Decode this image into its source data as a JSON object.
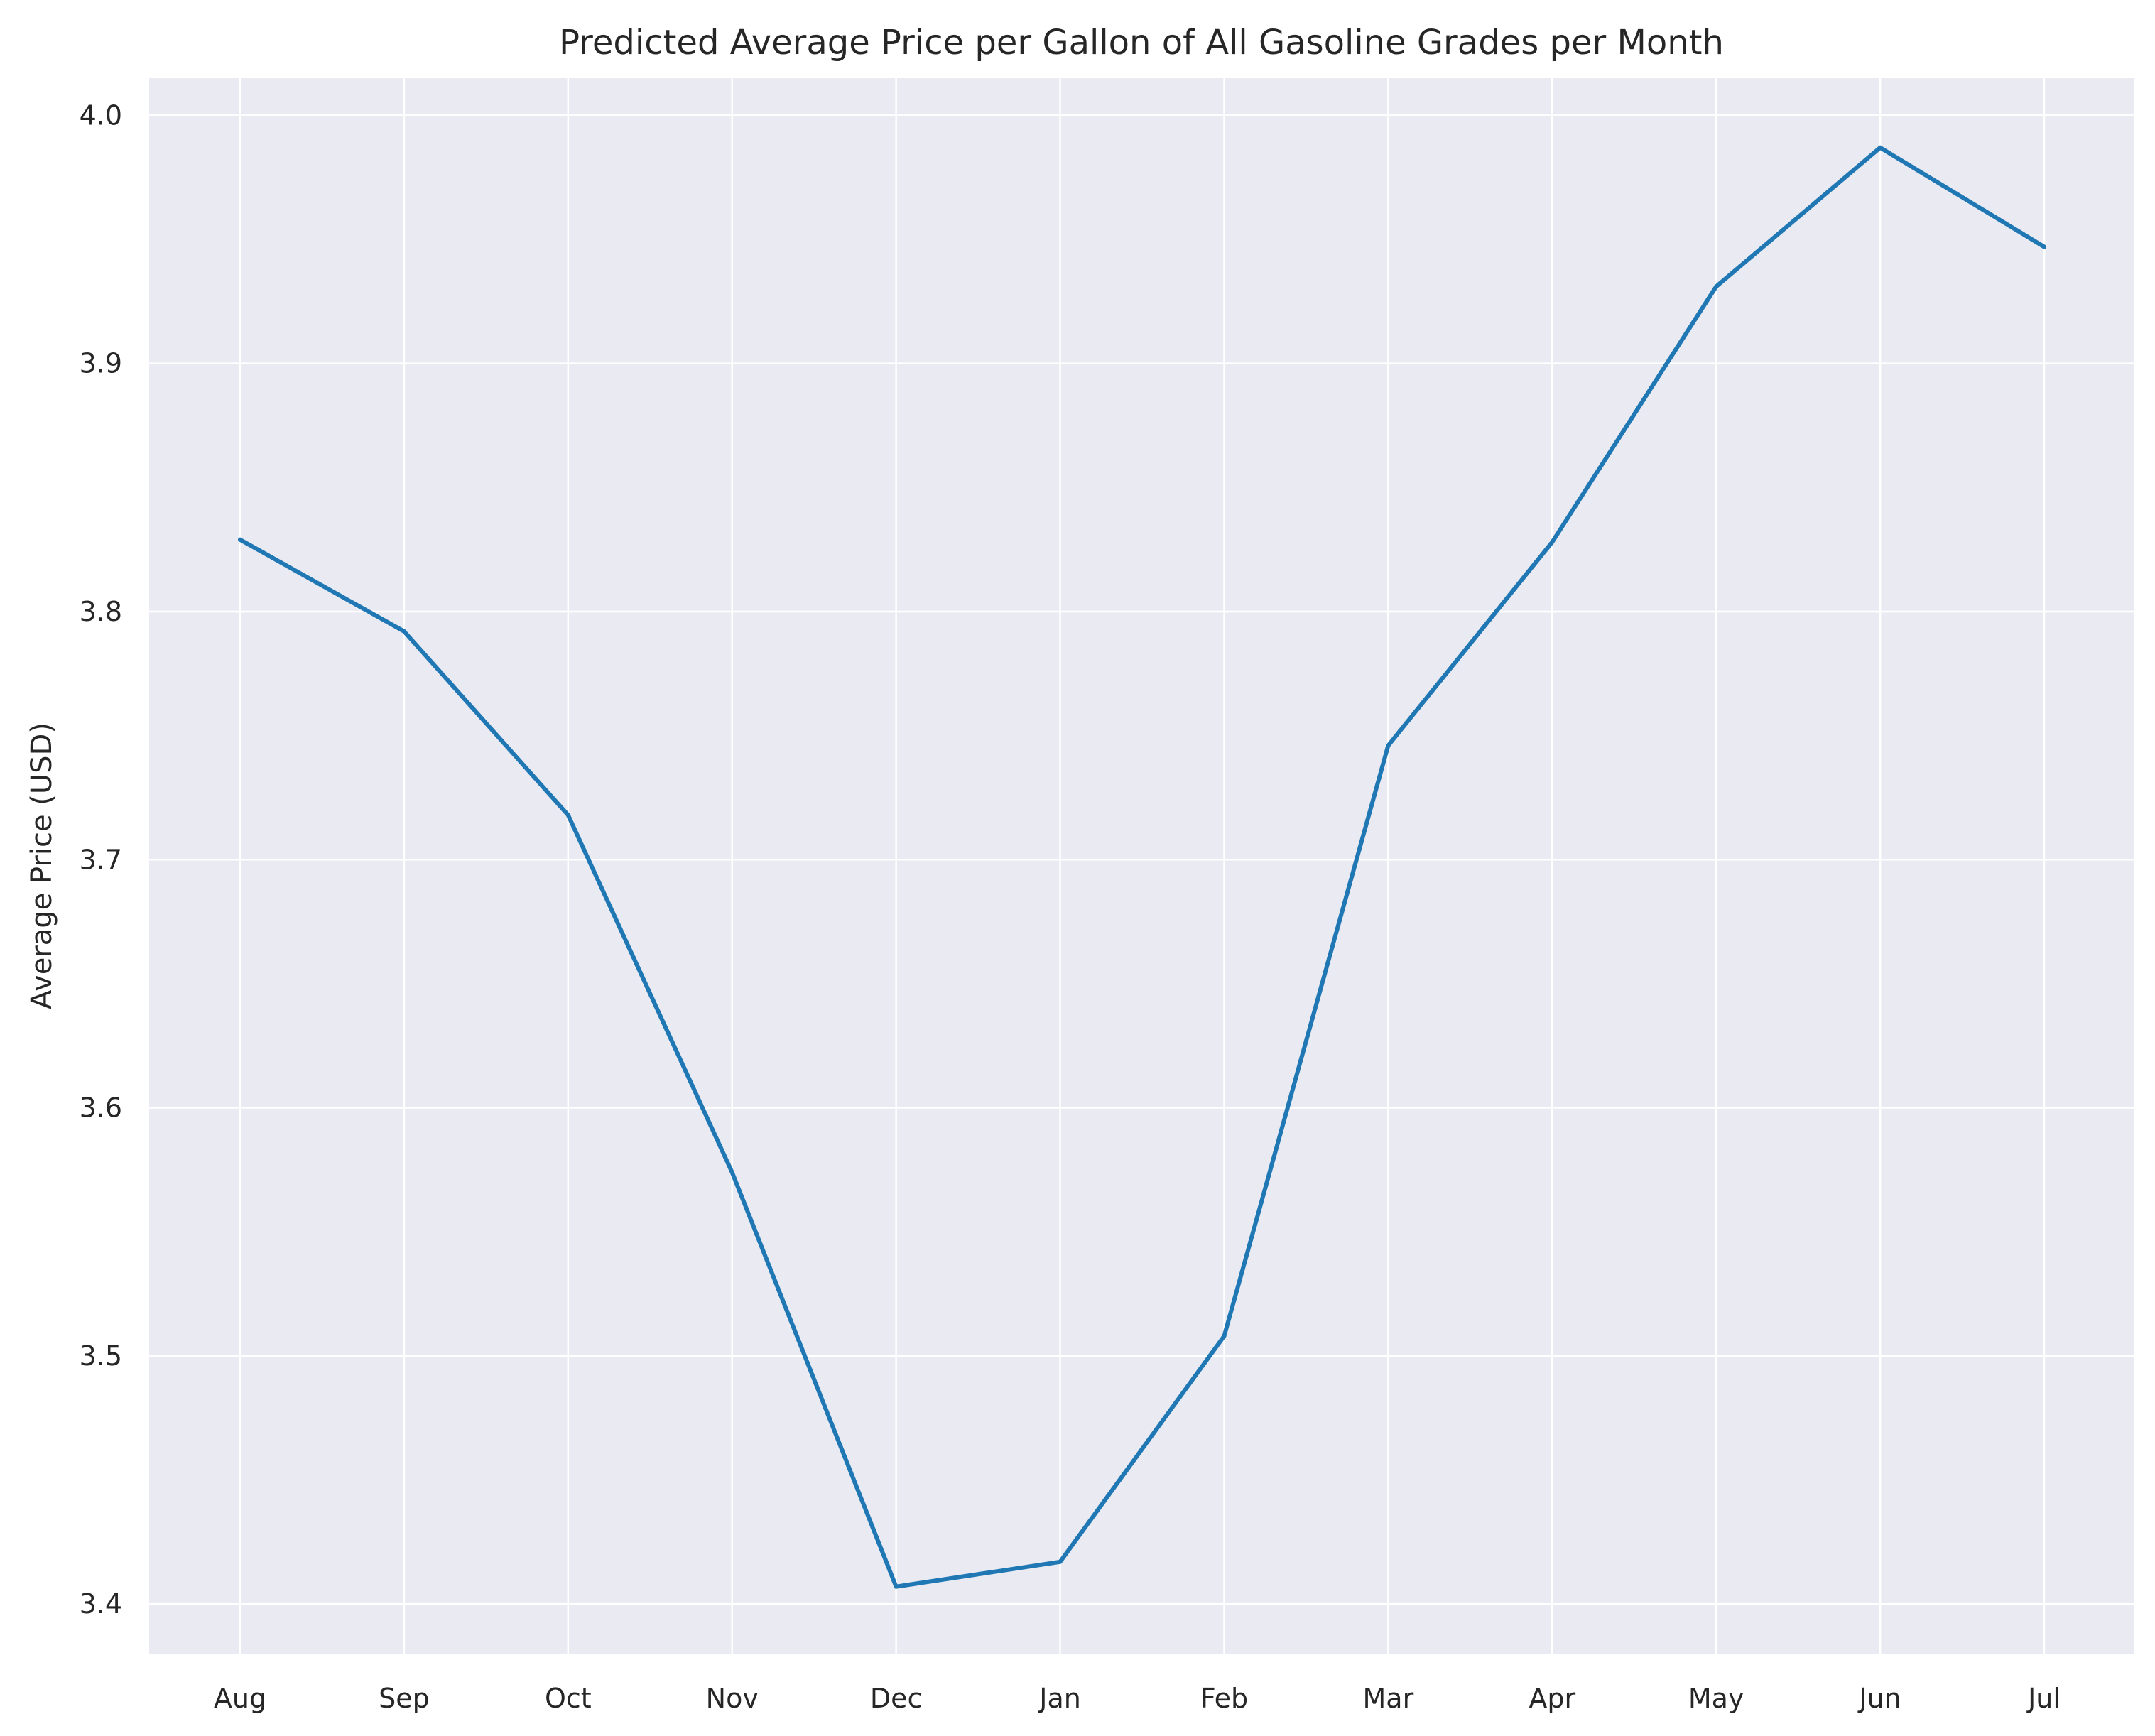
{
  "chart_data": {
    "type": "line",
    "title": "Predicted Average Price per Gallon of All Gasoline Grades per Month",
    "xlabel": "",
    "ylabel": "Average Price (USD)",
    "categories": [
      "Aug",
      "Sep",
      "Oct",
      "Nov",
      "Dec",
      "Jan",
      "Feb",
      "Mar",
      "Apr",
      "May",
      "Jun",
      "Jul"
    ],
    "series": [
      {
        "values": [
          3.829,
          3.792,
          3.718,
          3.574,
          3.407,
          3.417,
          3.508,
          3.746,
          3.828,
          3.931,
          3.987,
          3.947
        ]
      }
    ],
    "ylim": [
      3.38,
      4.015
    ],
    "yticks": [
      "3.4",
      "3.5",
      "3.6",
      "3.7",
      "3.8",
      "3.9",
      "4.0"
    ],
    "grid": true,
    "legend": "none",
    "colors": {
      "background": "#EAEAF2",
      "grid": "#FFFFFF",
      "line": "#1F77B4",
      "text": "#262626"
    }
  }
}
